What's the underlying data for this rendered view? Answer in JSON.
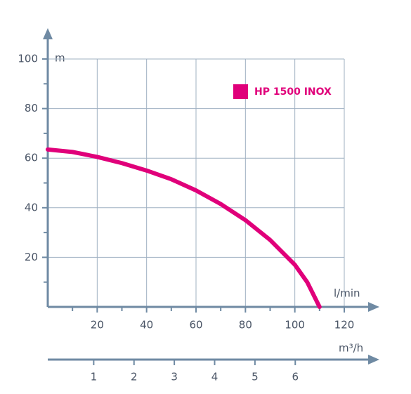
{
  "chart_data": {
    "type": "line",
    "series": [
      {
        "name": "HP 1500 INOX",
        "color": "#e0007a",
        "x": [
          0,
          10,
          20,
          30,
          40,
          50,
          60,
          70,
          80,
          90,
          100,
          105,
          110
        ],
        "values": [
          63.5,
          62.5,
          60.5,
          58,
          55,
          51.5,
          47,
          41.5,
          35,
          27,
          17,
          10,
          0
        ]
      }
    ],
    "xlabel": "l/min",
    "ylabel": "m",
    "xlim": [
      0,
      120
    ],
    "ylim": [
      0,
      100
    ],
    "xticks": [
      20,
      40,
      60,
      80,
      100,
      120
    ],
    "yticks": [
      20,
      40,
      60,
      80,
      100
    ],
    "grid": true,
    "x2label": "m³/h",
    "x2lim": [
      0,
      8
    ],
    "x2ticks": [
      1,
      2,
      3,
      4,
      5,
      6
    ]
  }
}
